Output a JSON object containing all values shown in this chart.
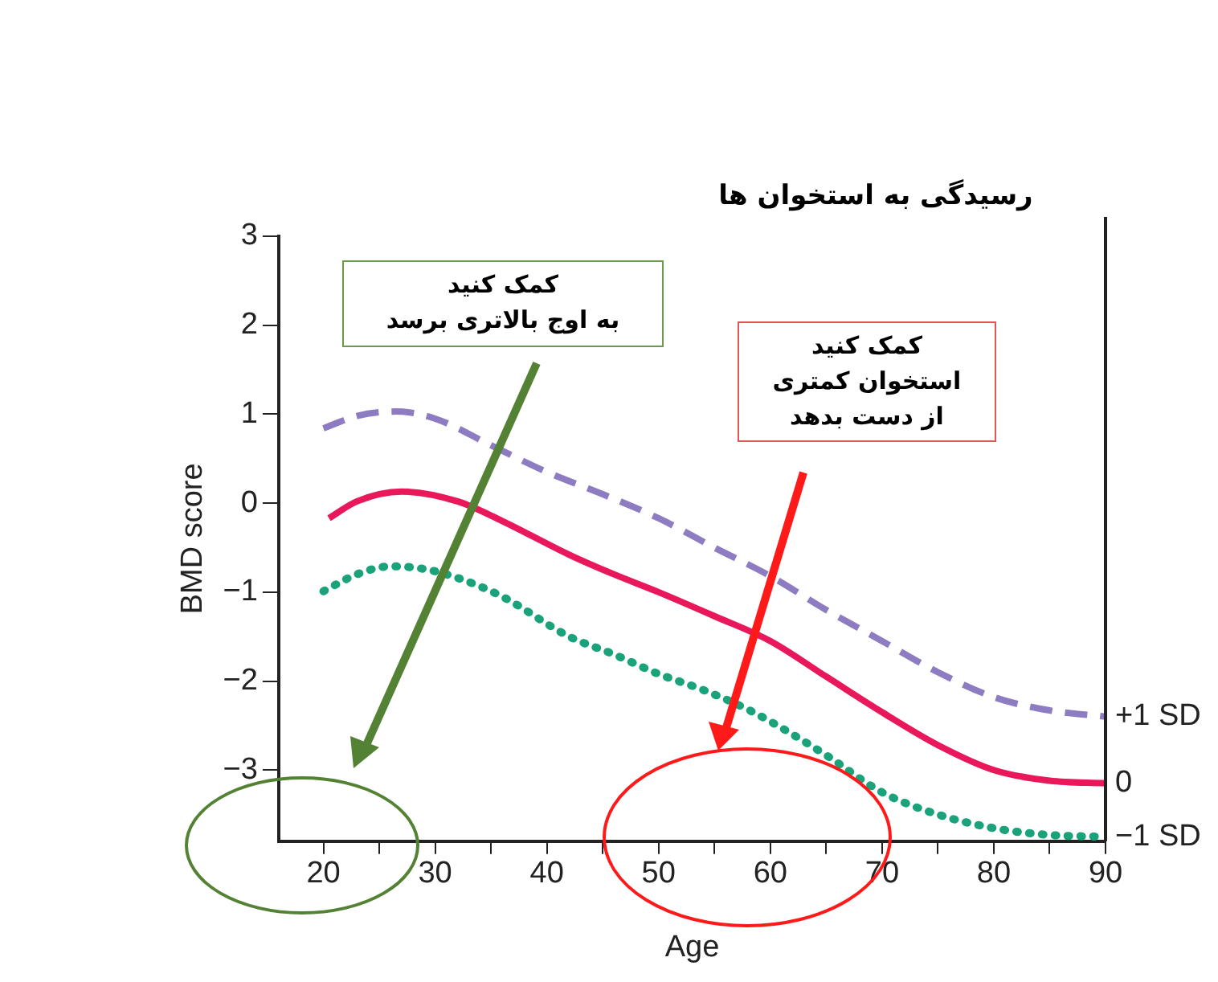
{
  "chart_data": {
    "type": "line",
    "title": "رسیدگی به استخوان ها",
    "xlabel": "Age",
    "ylabel": "BMD score",
    "annotations": [
      "کمک کنید\nبه اوج بالاتری برسد",
      "کمک کنید\nاستخوان کمتری\nاز دست بدهد"
    ],
    "xlim": [
      16,
      90
    ],
    "xticks": [
      20,
      {
        "value": 25,
        "label": null
      },
      30,
      {
        "value": 35,
        "label": null
      },
      40,
      {
        "value": 45,
        "label": null
      },
      50,
      {
        "value": 55,
        "label": null
      },
      60,
      {
        "value": 65,
        "label": null
      },
      70,
      {
        "value": 75,
        "label": null
      },
      80,
      {
        "value": 85,
        "label": null
      },
      90
    ],
    "ylim": [
      -3.8,
      3
    ],
    "yticks": [
      -3,
      -2,
      -1,
      0,
      1,
      2,
      3
    ],
    "grid": false,
    "legend": false,
    "marker": "none",
    "series": [
      {
        "name": "+1 SD",
        "color": "#8e7cc3",
        "line_style": "dashed",
        "x": [
          20,
          23,
          26.5,
          30,
          35,
          40,
          45,
          50,
          55,
          60,
          65,
          70,
          75,
          80,
          85,
          90
        ],
        "values": [
          0.84,
          0.98,
          1.03,
          0.95,
          0.65,
          0.35,
          0.1,
          -0.17,
          -0.5,
          -0.82,
          -1.2,
          -1.55,
          -1.9,
          -2.18,
          -2.33,
          -2.4
        ]
      },
      {
        "name": "0",
        "color": "#e8185a",
        "line_style": "solid",
        "x": [
          20.5,
          23,
          27,
          32,
          36,
          42,
          46,
          50,
          55,
          60,
          65,
          70,
          75,
          80,
          85,
          90
        ],
        "values": [
          -0.17,
          0.02,
          0.13,
          0.02,
          -0.2,
          -0.58,
          -0.8,
          -1.0,
          -1.27,
          -1.55,
          -1.95,
          -2.35,
          -2.72,
          -3.0,
          -3.12,
          -3.15
        ]
      },
      {
        "name": "−1 SD",
        "color": "#1aa37a",
        "line_style": "dotted",
        "x": [
          20,
          23,
          26,
          29,
          32,
          36,
          42,
          46,
          50,
          54,
          58,
          62,
          65.2,
          70,
          75,
          80.3,
          85,
          90
        ],
        "values": [
          -0.99,
          -0.8,
          -0.71,
          -0.74,
          -0.84,
          -1.05,
          -1.5,
          -1.7,
          -1.92,
          -2.1,
          -2.32,
          -2.6,
          -2.85,
          -3.25,
          -3.5,
          -3.66,
          -3.73,
          -3.75
        ]
      }
    ]
  }
}
